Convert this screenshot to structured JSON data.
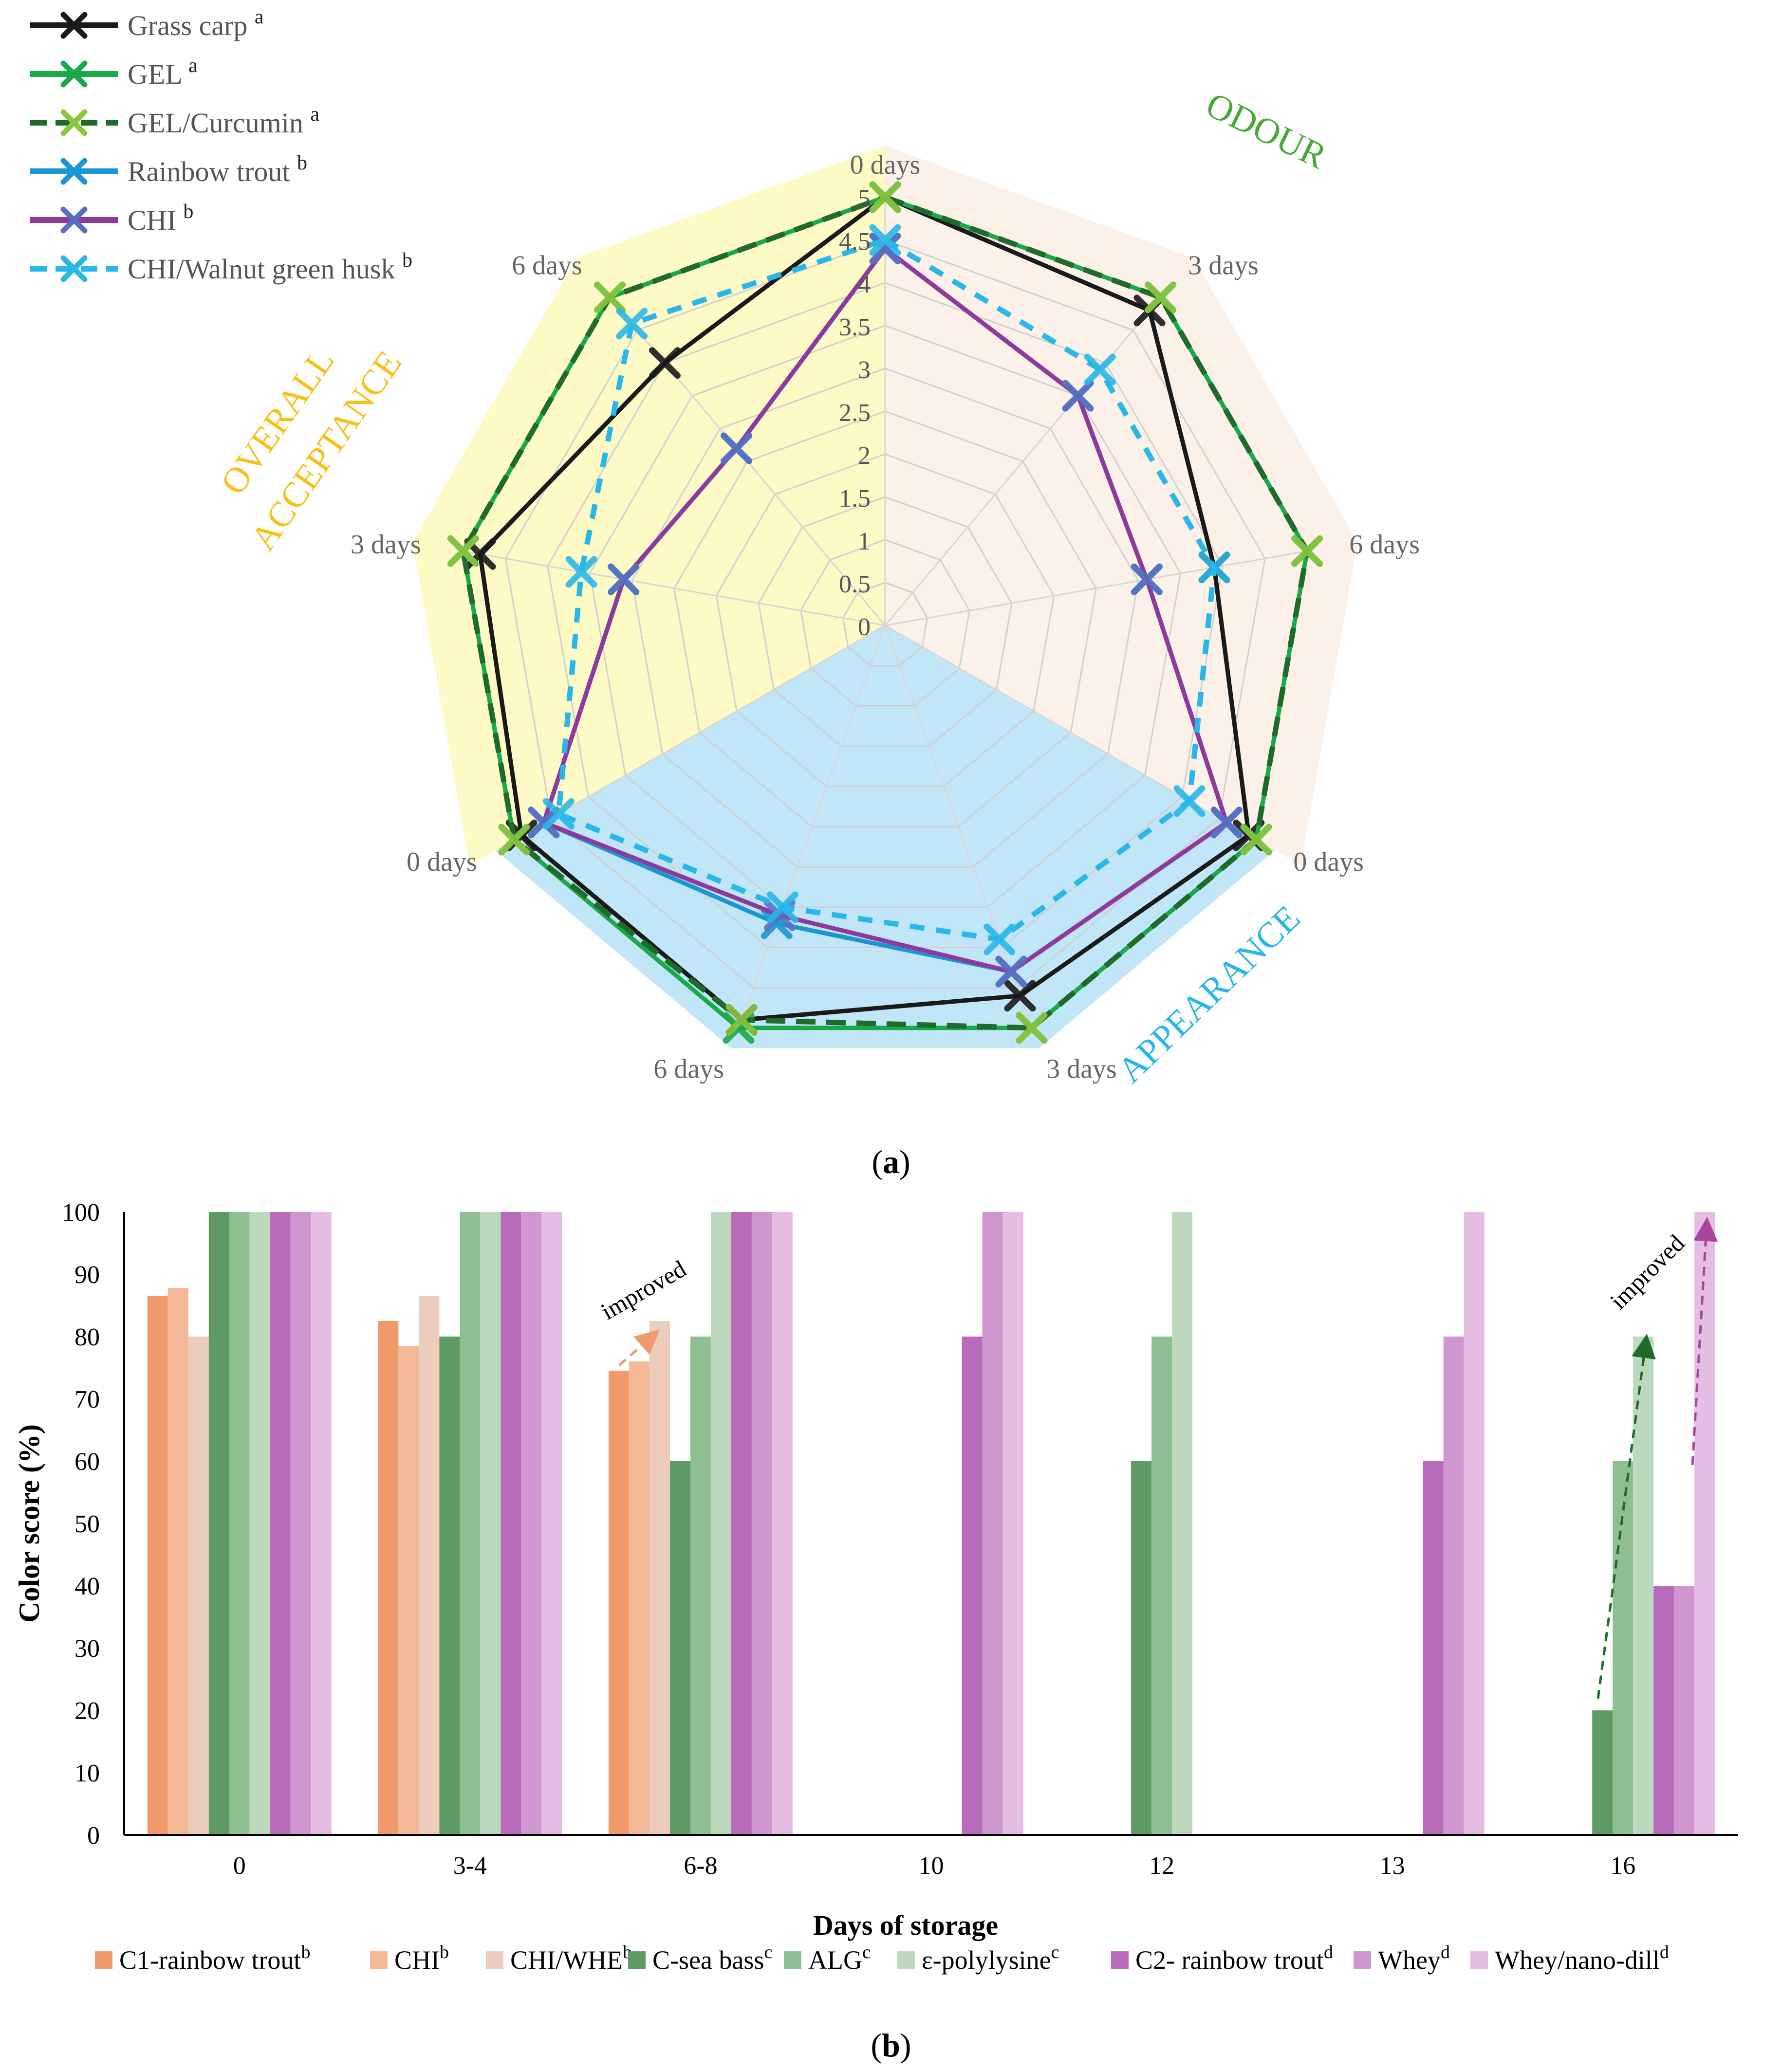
{
  "figure": {
    "label_a": "(a)",
    "label_b": "(b)",
    "letter_a": "a",
    "letter_b": "b"
  },
  "colors": {
    "black": "#1a1a1a",
    "green": "#19a84a",
    "dark_green": "#1f6b2c",
    "light_green_marker": "#8cc63f",
    "blue": "#1b96d4",
    "purple": "#8e3a9d",
    "cyan": "#29b6e8",
    "bg_odour": "#fbeee4",
    "bg_overall": "#fbf7a0",
    "bg_appearance": "#a6dcf3",
    "odour_label": "#4aa83a",
    "overall_label": "#f4c21a",
    "appearance_label": "#29b6e8"
  },
  "chart_data": [
    {
      "type": "radar",
      "scale": {
        "min": 0,
        "max": 5,
        "ticks": [
          "0",
          "0.5",
          "1",
          "1.5",
          "2",
          "2.5",
          "3",
          "3.5",
          "4",
          "4.5",
          "5"
        ]
      },
      "axes": [
        "0 days",
        "3 days",
        "6 days",
        "0 days",
        "3 days",
        "6 days",
        "0 days",
        "3 days",
        "6 days"
      ],
      "groups": [
        {
          "name": "ODOUR",
          "axes": [
            0,
            1,
            2
          ]
        },
        {
          "name": "APPEARANCE",
          "axes": [
            3,
            4,
            5
          ]
        },
        {
          "name": "OVERALL ACCEPTANCE",
          "lines": [
            "OVERALL",
            "ACCEPTANCE"
          ],
          "axes": [
            6,
            7,
            8
          ]
        }
      ],
      "series": [
        {
          "name": "Grass carp",
          "sup": "a",
          "style": "solid",
          "values": [
            5,
            4.8,
            3.9,
            4.9,
            4.6,
            4.9,
            4.9,
            4.8,
            4.0
          ]
        },
        {
          "name": "GEL",
          "sup": "a",
          "style": "solid",
          "values": [
            5,
            5,
            5,
            5,
            5,
            5,
            5,
            5,
            5
          ]
        },
        {
          "name": "GEL/Curcumin",
          "sup": "a",
          "style": "dashed",
          "values": [
            5,
            5,
            5,
            5,
            5,
            4.9,
            5,
            5,
            5
          ]
        },
        {
          "name": "Rainbow trout",
          "sup": "b",
          "style": "solid",
          "values": [
            4.4,
            3.5,
            3.1,
            4.6,
            4.3,
            3.7,
            4.6,
            3.1,
            2.7
          ]
        },
        {
          "name": "CHI",
          "sup": "b",
          "style": "solid",
          "values": [
            4.4,
            3.5,
            3.1,
            4.6,
            4.3,
            3.6,
            4.6,
            3.1,
            2.7
          ]
        },
        {
          "name": "CHI/Walnut green husk",
          "sup": "b",
          "style": "dashed",
          "values": [
            4.5,
            3.9,
            3.9,
            4.1,
            3.9,
            3.5,
            4.4,
            3.6,
            4.6
          ]
        }
      ]
    },
    {
      "type": "bar",
      "title": "",
      "xlabel": "Days of storage",
      "ylabel": "Color score (%)",
      "ylim": [
        0,
        100
      ],
      "yticks": [
        "0",
        "10",
        "20",
        "30",
        "40",
        "50",
        "60",
        "70",
        "80",
        "90",
        "100"
      ],
      "categories": [
        "0",
        "3-4",
        "6-8",
        "10",
        "12",
        "13",
        "16"
      ],
      "series": [
        {
          "name": "C1-rainbow trout",
          "sup": "b",
          "color": "#f0996a",
          "values": [
            86.5,
            82.5,
            74.5,
            null,
            null,
            null,
            null
          ]
        },
        {
          "name": "CHI",
          "sup": "b",
          "color": "#f3b896",
          "values": [
            87.8,
            78.5,
            76,
            null,
            null,
            null,
            null
          ]
        },
        {
          "name": "CHI/WHE",
          "sup": "b",
          "color": "#ecccbb",
          "values": [
            80,
            86.5,
            82.5,
            null,
            null,
            null,
            null
          ]
        },
        {
          "name": "C-sea bass",
          "sup": "c",
          "color": "#5e9a63",
          "values": [
            100,
            80,
            60,
            null,
            60,
            null,
            20
          ]
        },
        {
          "name": "ALG",
          "sup": "c",
          "color": "#8ebf92",
          "values": [
            100,
            100,
            80,
            null,
            80,
            null,
            60
          ]
        },
        {
          "name": "ε-polylysine",
          "sup": "c",
          "color": "#bcd9be",
          "values": [
            100,
            100,
            100,
            null,
            100,
            null,
            80
          ]
        },
        {
          "name": "C2- rainbow trout",
          "sup": "d",
          "color": "#b86bba",
          "values": [
            100,
            100,
            100,
            80,
            null,
            60,
            40
          ]
        },
        {
          "name": "Whey",
          "sup": "d",
          "color": "#cf96d0",
          "values": [
            100,
            100,
            100,
            100,
            null,
            80,
            40
          ]
        },
        {
          "name": "Whey/nano-dill",
          "sup": "d",
          "color": "#e5bde2",
          "values": [
            100,
            100,
            100,
            100,
            null,
            100,
            100
          ]
        }
      ],
      "annotations": [
        {
          "text": "improved",
          "category": "6-8",
          "color": "#f0996a"
        },
        {
          "text": "improved",
          "category": "16",
          "colors": [
            "#1f6b2c",
            "#a9459f"
          ]
        }
      ]
    }
  ]
}
